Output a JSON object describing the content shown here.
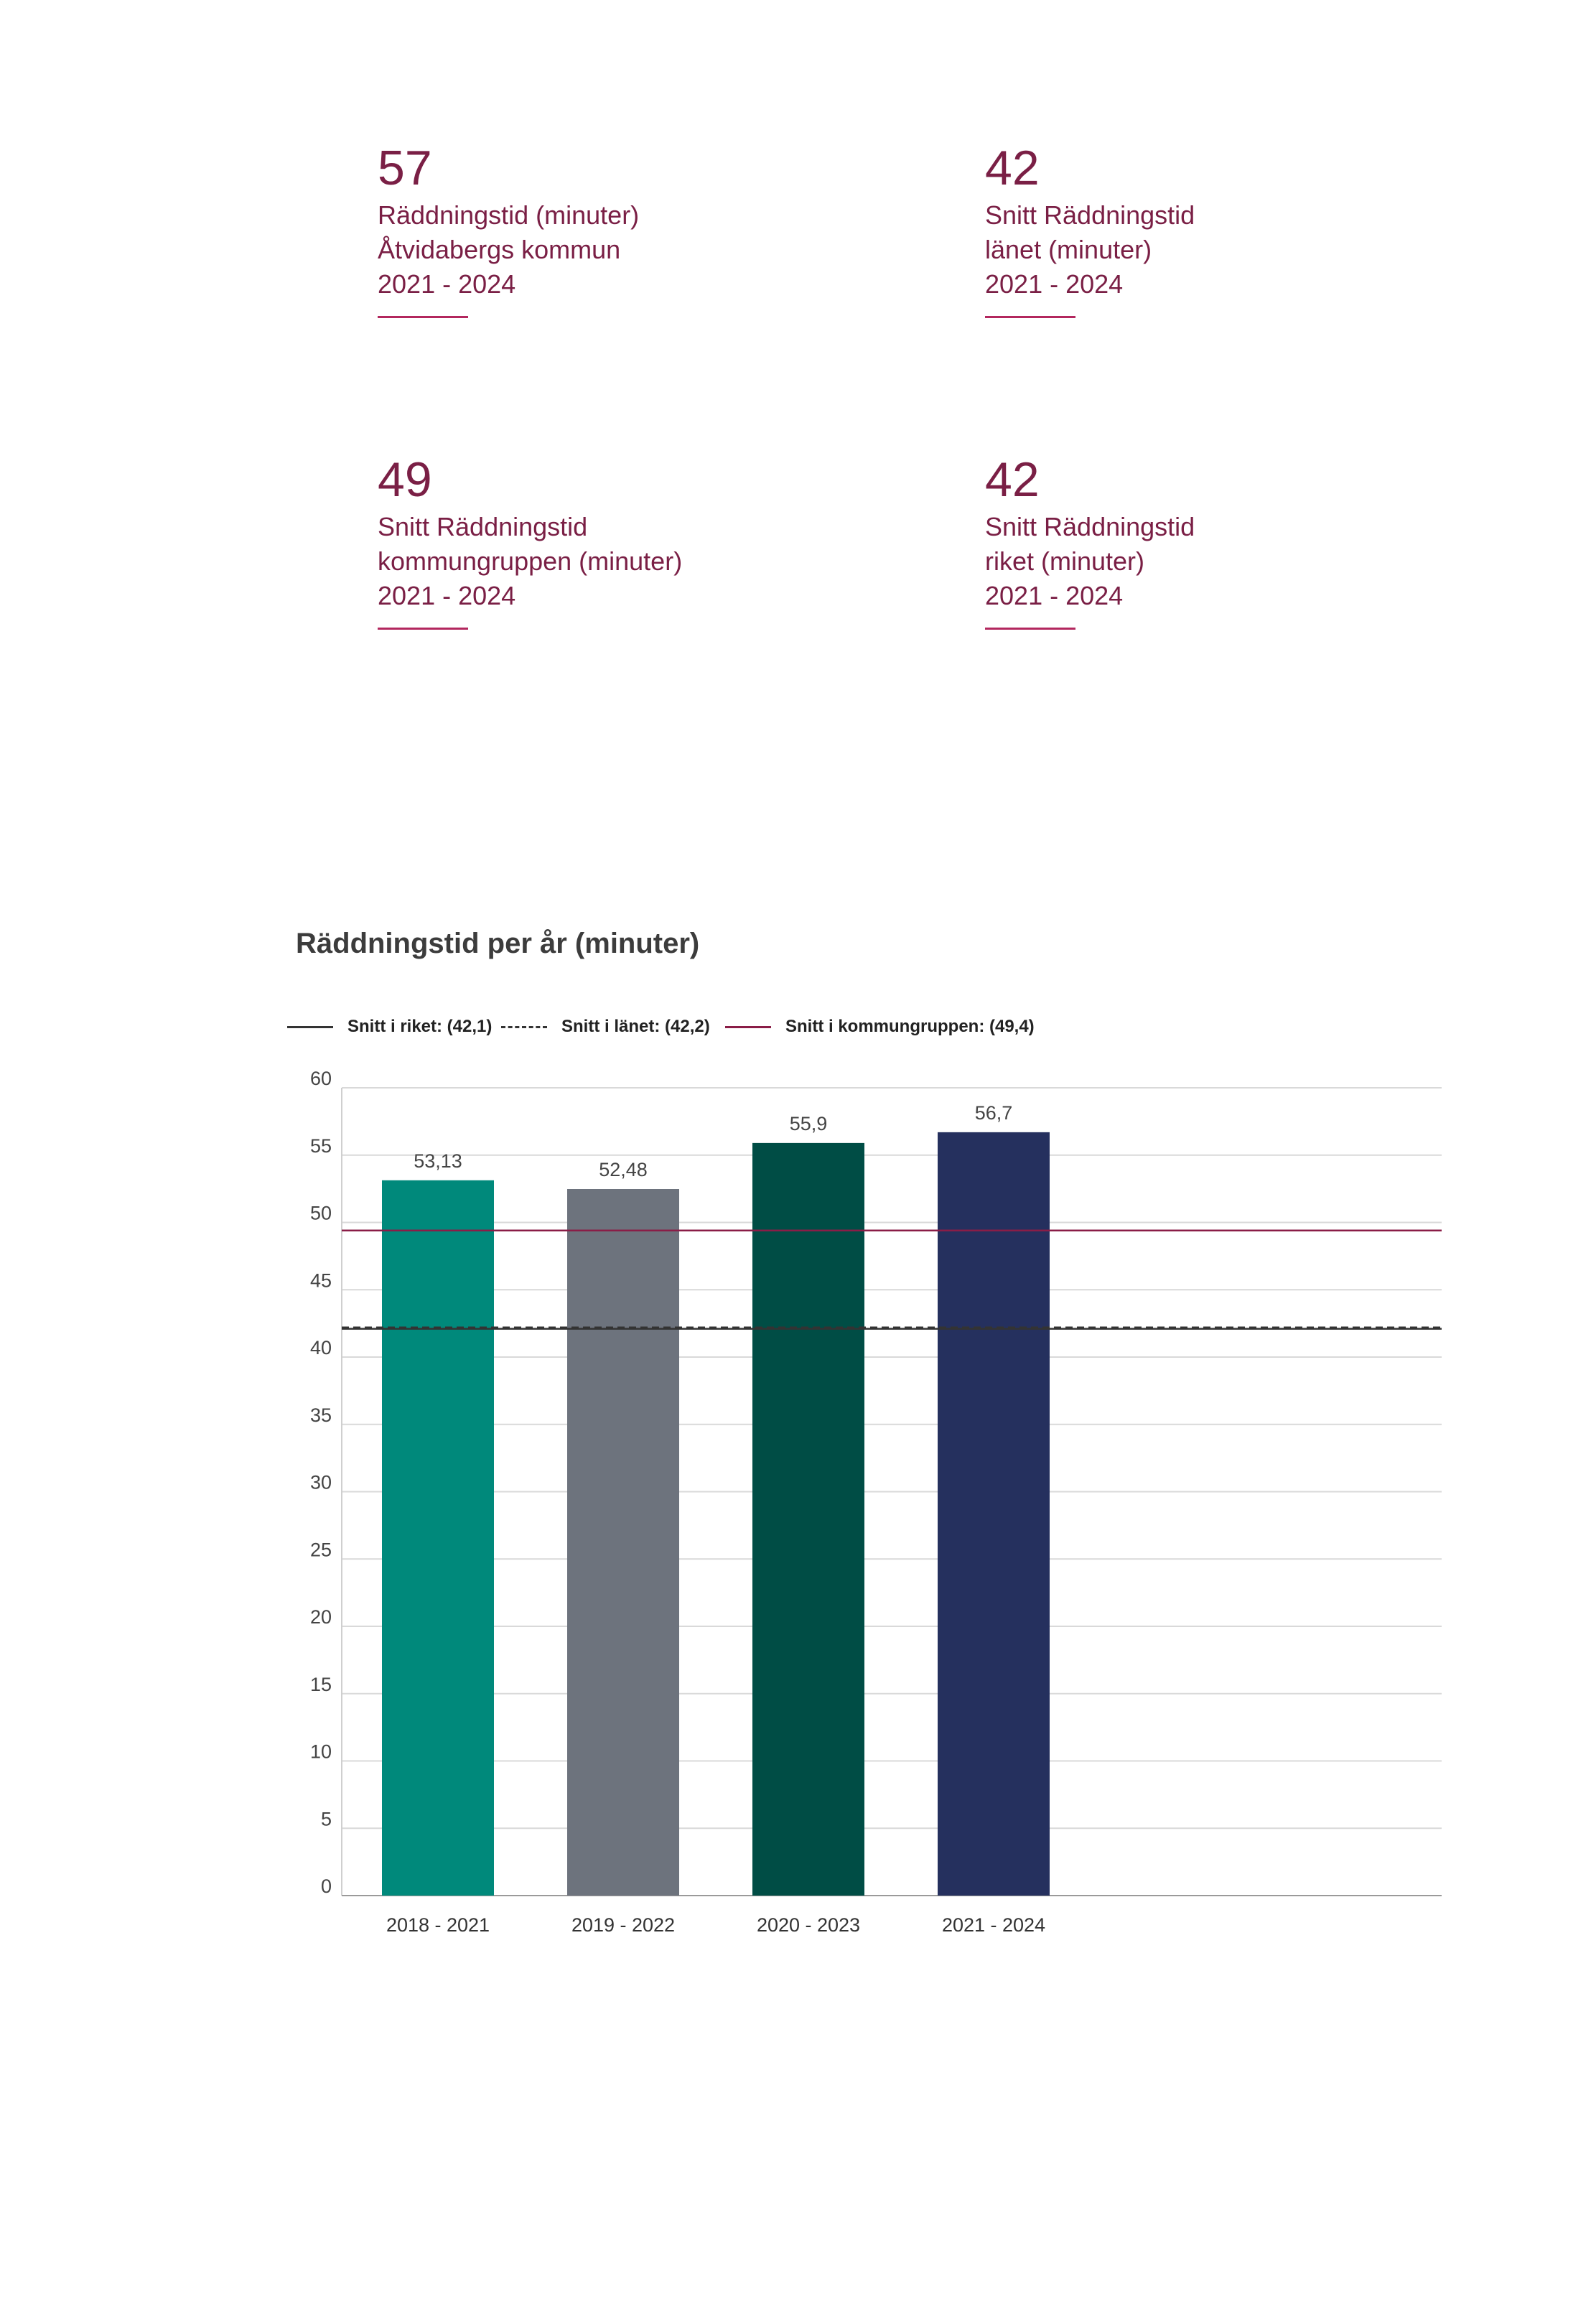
{
  "stats": [
    {
      "value": "57",
      "lines": [
        "Räddningstid (minuter)",
        "Åtvidabergs kommun",
        "2021 - 2024"
      ]
    },
    {
      "value": "42",
      "lines": [
        "Snitt Räddningstid",
        "länet (minuter)",
        "2021 - 2024"
      ]
    },
    {
      "value": "49",
      "lines": [
        "Snitt Räddningstid",
        "kommungruppen (minuter)",
        "2021 - 2024"
      ]
    },
    {
      "value": "42",
      "lines": [
        "Snitt Räddningstid",
        "riket (minuter)",
        "2021 - 2024"
      ]
    }
  ],
  "colors": {
    "accent": "#7a1f45",
    "rule": "#b3275e"
  },
  "chart_data": {
    "type": "bar",
    "title": "Räddningstid per år (minuter)",
    "categories": [
      "2018 - 2021",
      "2019 - 2022",
      "2020 - 2023",
      "2021 - 2024"
    ],
    "values": [
      53.13,
      52.48,
      55.9,
      56.7
    ],
    "value_labels": [
      "53,13",
      "52,48",
      "55,9",
      "56,7"
    ],
    "bar_colors": [
      "#00897b",
      "#6d737d",
      "#004d45",
      "#25305e"
    ],
    "ylim": [
      0,
      60
    ],
    "yticks": [
      0,
      5,
      10,
      15,
      20,
      25,
      30,
      35,
      40,
      45,
      50,
      55,
      60
    ],
    "grid": true,
    "legend_position": "top",
    "reference_lines": [
      {
        "label": "Snitt i riket: (42,1)",
        "value": 42.1,
        "color": "#333333",
        "style": "solid"
      },
      {
        "label": "Snitt i länet: (42,2)",
        "value": 42.2,
        "color": "#333333",
        "style": "dashed"
      },
      {
        "label": "Snitt i kommungruppen: (49,4)",
        "value": 49.4,
        "color": "#8a1d47",
        "style": "solid"
      }
    ]
  }
}
